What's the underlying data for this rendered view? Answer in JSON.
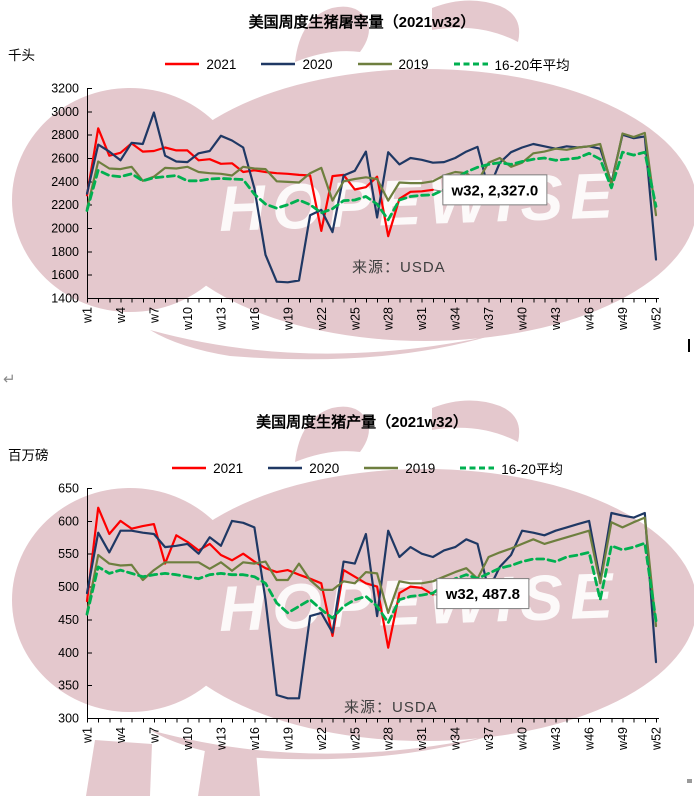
{
  "page": {
    "background": "#ffffff",
    "return_mark": "↵"
  },
  "charts": [
    {
      "source": "来源：USDA",
      "watermark_text": "HOPEWISE",
      "chart_data": {
        "type": "line",
        "title": "美国周度生猪屠宰量（2021w32）",
        "ylabel": "千头",
        "xlabel": "",
        "ylim": [
          1400,
          3200
        ],
        "ytick_step": 200,
        "grid": false,
        "legend_position": "top-center",
        "categories": [
          "w1",
          "w2",
          "w3",
          "w4",
          "w5",
          "w6",
          "w7",
          "w8",
          "w9",
          "w10",
          "w11",
          "w12",
          "w13",
          "w14",
          "w15",
          "w16",
          "w17",
          "w18",
          "w19",
          "w20",
          "w21",
          "w22",
          "w23",
          "w24",
          "w25",
          "w26",
          "w27",
          "w28",
          "w29",
          "w30",
          "w31",
          "w32",
          "w33",
          "w34",
          "w35",
          "w36",
          "w37",
          "w38",
          "w39",
          "w40",
          "w41",
          "w42",
          "w43",
          "w44",
          "w45",
          "w46",
          "w47",
          "w48",
          "w49",
          "w50",
          "w51",
          "w52"
        ],
        "xtick_labels": [
          "w1",
          "w4",
          "w7",
          "w10",
          "w13",
          "w16",
          "w19",
          "w22",
          "w25",
          "w28",
          "w31",
          "w34",
          "w37",
          "w40",
          "w43",
          "w46",
          "w49",
          "w52"
        ],
        "annotation": {
          "text": "w32, 2,327.0",
          "series": "2021",
          "category": "w32",
          "value": 2327.0
        },
        "series": [
          {
            "name": "2021",
            "color": "#fe0000",
            "dash": false,
            "values": [
              2280,
              2855,
              2620,
              2645,
              2725,
              2655,
              2660,
              2690,
              2665,
              2665,
              2580,
              2590,
              2550,
              2555,
              2480,
              2495,
              2480,
              2470,
              2465,
              2455,
              2450,
              1975,
              2445,
              2455,
              2330,
              2350,
              2440,
              1930,
              2250,
              2310,
              2315,
              2327
            ]
          },
          {
            "name": "2020",
            "color": "#1f3864",
            "dash": false,
            "values": [
              2295,
              2715,
              2655,
              2580,
              2730,
              2720,
              2990,
              2620,
              2570,
              2565,
              2640,
              2660,
              2790,
              2750,
              2690,
              2340,
              1770,
              1540,
              1535,
              1550,
              2110,
              2155,
              1965,
              2450,
              2490,
              2655,
              2090,
              2650,
              2545,
              2600,
              2585,
              2560,
              2565,
              2600,
              2655,
              2695,
              2330,
              2560,
              2650,
              2690,
              2720,
              2700,
              2680,
              2700,
              2690,
              2700,
              2680,
              2390,
              2800,
              2770,
              2785,
              1730
            ]
          },
          {
            "name": "2019",
            "color": "#6e7f3f",
            "dash": false,
            "values": [
              2165,
              2570,
              2510,
              2505,
              2525,
              2405,
              2440,
              2515,
              2510,
              2525,
              2480,
              2470,
              2465,
              2450,
              2525,
              2510,
              2505,
              2400,
              2395,
              2390,
              2470,
              2515,
              2235,
              2400,
              2420,
              2435,
              2420,
              2235,
              2390,
              2385,
              2385,
              2400,
              2450,
              2480,
              2470,
              2400,
              2560,
              2600,
              2525,
              2560,
              2640,
              2655,
              2680,
              2670,
              2690,
              2700,
              2720,
              2370,
              2810,
              2780,
              2815,
              2110
            ]
          },
          {
            "name": "16-20年平均",
            "color": "#00b050",
            "dash": true,
            "values": [
              2150,
              2495,
              2450,
              2440,
              2465,
              2405,
              2430,
              2440,
              2450,
              2405,
              2405,
              2420,
              2425,
              2420,
              2415,
              2290,
              2205,
              2170,
              2200,
              2240,
              2200,
              2130,
              2165,
              2235,
              2240,
              2270,
              2205,
              2070,
              2240,
              2270,
              2280,
              2285,
              2330,
              2420,
              2480,
              2520,
              2545,
              2560,
              2545,
              2570,
              2590,
              2600,
              2580,
              2590,
              2600,
              2640,
              2590,
              2345,
              2650,
              2625,
              2650,
              2185
            ]
          }
        ]
      }
    },
    {
      "source": "来源：USDA",
      "watermark_text": "HOPEWISE",
      "chart_data": {
        "type": "line",
        "title": "美国周度生猪产量（2021w32）",
        "ylabel": "百万磅",
        "xlabel": "",
        "ylim": [
          300,
          650
        ],
        "ytick_step": 50,
        "grid": false,
        "legend_position": "top-center",
        "categories": [
          "w1",
          "w2",
          "w3",
          "w4",
          "w5",
          "w6",
          "w7",
          "w8",
          "w9",
          "w10",
          "w11",
          "w12",
          "w13",
          "w14",
          "w15",
          "w16",
          "w17",
          "w18",
          "w19",
          "w20",
          "w21",
          "w22",
          "w23",
          "w24",
          "w25",
          "w26",
          "w27",
          "w28",
          "w29",
          "w30",
          "w31",
          "w32",
          "w33",
          "w34",
          "w35",
          "w36",
          "w37",
          "w38",
          "w39",
          "w40",
          "w41",
          "w42",
          "w43",
          "w44",
          "w45",
          "w46",
          "w47",
          "w48",
          "w49",
          "w50",
          "w51",
          "w52"
        ],
        "xtick_labels": [
          "w1",
          "w4",
          "w7",
          "w10",
          "w13",
          "w16",
          "w19",
          "w22",
          "w25",
          "w28",
          "w31",
          "w34",
          "w37",
          "w40",
          "w43",
          "w46",
          "w49",
          "w52"
        ],
        "annotation": {
          "text": "w32, 487.8",
          "series": "2021",
          "category": "w32",
          "value": 487.8
        },
        "series": [
          {
            "name": "2021",
            "color": "#fe0000",
            "dash": false,
            "values": [
              478,
              620,
              580,
              600,
              588,
              592,
              595,
              535,
              578,
              568,
              555,
              565,
              548,
              540,
              550,
              538,
              528,
              522,
              525,
              518,
              512,
              505,
              425,
              525,
              515,
              505,
              500,
              407,
              490,
              500,
              498,
              487.8
            ]
          },
          {
            "name": "2020",
            "color": "#1f3864",
            "dash": false,
            "values": [
              490,
              582,
              552,
              585,
              585,
              582,
              580,
              560,
              562,
              565,
              550,
              575,
              562,
              600,
              597,
              590,
              480,
              335,
              330,
              330,
              455,
              460,
              430,
              538,
              535,
              580,
              455,
              585,
              545,
              560,
              550,
              545,
              555,
              560,
              572,
              565,
              495,
              530,
              548,
              585,
              582,
              578,
              585,
              590,
              595,
              600,
              510,
              612,
              608,
              605,
              612,
              385
            ]
          },
          {
            "name": "2019",
            "color": "#6e7f3f",
            "dash": false,
            "values": [
              460,
              548,
              535,
              532,
              533,
              510,
              525,
              537,
              537,
              537,
              537,
              527,
              537,
              524,
              537,
              535,
              538,
              510,
              510,
              535,
              510,
              495,
              495,
              508,
              505,
              522,
              520,
              460,
              508,
              505,
              505,
              508,
              515,
              522,
              528,
              512,
              545,
              552,
              558,
              565,
              572,
              565,
              570,
              575,
              580,
              585,
              505,
              598,
              590,
              598,
              605,
              440
            ]
          },
          {
            "name": "16-20平均",
            "color": "#00b050",
            "dash": true,
            "values": [
              458,
              530,
              520,
              525,
              520,
              515,
              518,
              520,
              518,
              515,
              512,
              518,
              520,
              518,
              518,
              515,
              505,
              475,
              460,
              470,
              480,
              465,
              452,
              470,
              480,
              485,
              470,
              445,
              480,
              485,
              487,
              490,
              502,
              512,
              518,
              512,
              520,
              528,
              532,
              538,
              542,
              542,
              538,
              545,
              548,
              552,
              480,
              562,
              556,
              560,
              566,
              448
            ]
          }
        ]
      }
    }
  ]
}
